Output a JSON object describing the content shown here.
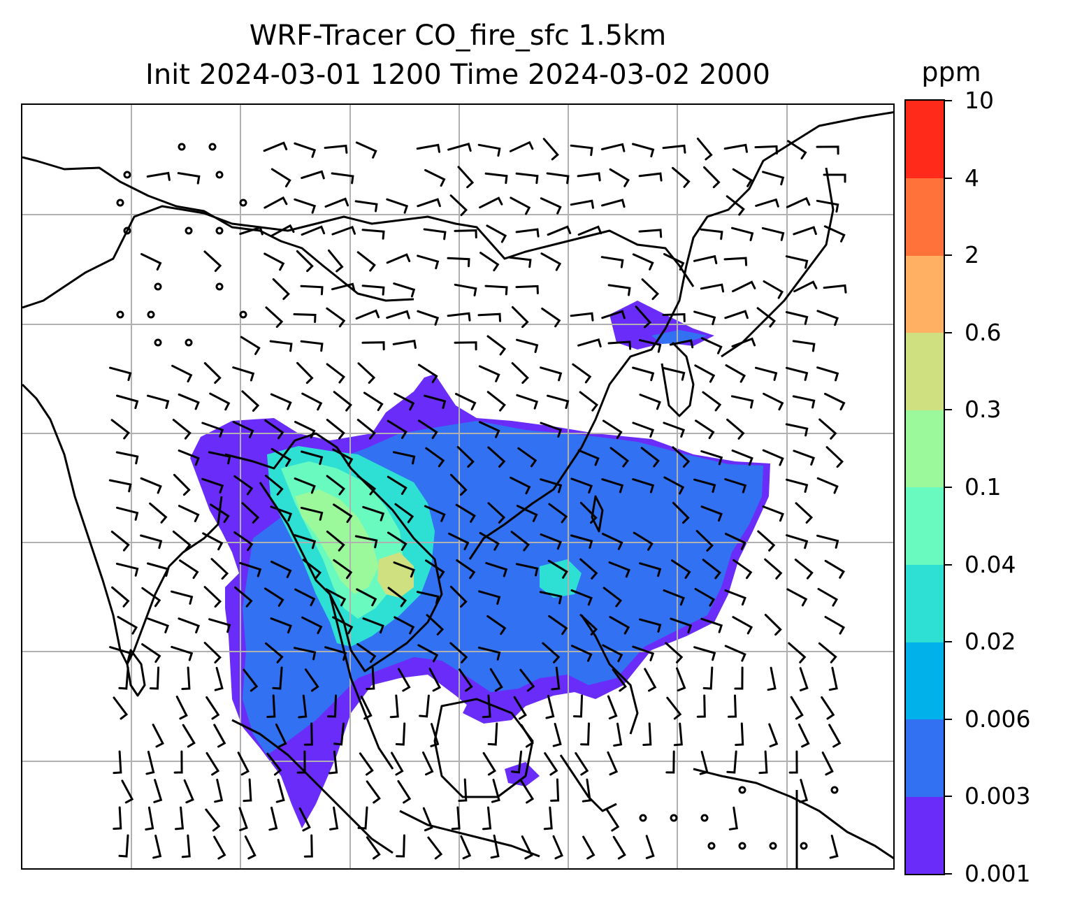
{
  "title": {
    "line1": "WRF-Tracer CO_fire_sfc 1.5km",
    "line2": "Init 2024-03-01 1200 Time 2024-03-02 2000"
  },
  "colorbar": {
    "unit": "ppm",
    "ticks": [
      "0.001",
      "0.003",
      "0.006",
      "0.02",
      "0.04",
      "0.1",
      "0.3",
      "0.6",
      "2",
      "4",
      "10"
    ],
    "colors": [
      "#6a2cf8",
      "#3271f2",
      "#00b1ea",
      "#2ee0d3",
      "#69fac0",
      "#9bf99c",
      "#cfe081",
      "#ffb062",
      "#ff733a",
      "#ff2a1a"
    ]
  },
  "map": {
    "grid_color": "#b0b0b0",
    "coastline_color": "#000000",
    "barb_color": "#000000",
    "projection": "lat-lon"
  }
}
